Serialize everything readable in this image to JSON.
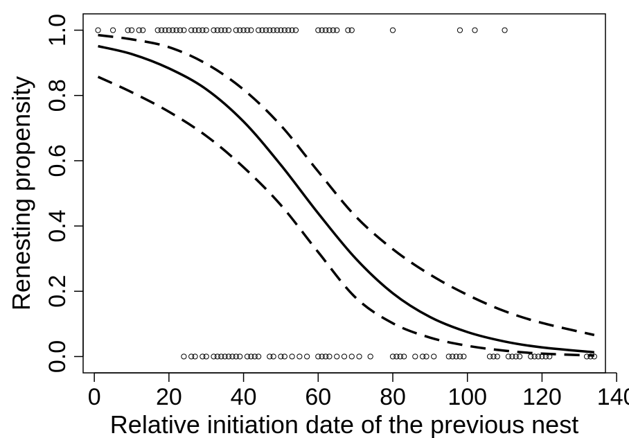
{
  "chart_data": {
    "type": "scatter",
    "title": "",
    "xlabel": "Relative initiation date of the previous nest",
    "ylabel": "Renesting propensity",
    "xlim": [
      -3,
      137
    ],
    "ylim": [
      -0.05,
      1.05
    ],
    "xticks": [
      0,
      20,
      40,
      60,
      80,
      100,
      120,
      140
    ],
    "yticks": [
      0.0,
      0.2,
      0.4,
      0.6,
      0.8,
      1.0
    ],
    "xtick_labels": [
      "0",
      "20",
      "40",
      "60",
      "80",
      "100",
      "120",
      "140"
    ],
    "ytick_labels": [
      "0.0",
      "0.2",
      "0.4",
      "0.6",
      "0.8",
      "1.0"
    ],
    "grid": false,
    "observations": {
      "renested_x": [
        1,
        5,
        9,
        10,
        12,
        13,
        17,
        18,
        19,
        20,
        21,
        22,
        23,
        24,
        26,
        27,
        28,
        29,
        30,
        32,
        33,
        34,
        35,
        36,
        38,
        39,
        40,
        41,
        42,
        44,
        45,
        46,
        47,
        48,
        49,
        50,
        51,
        52,
        53,
        54,
        60,
        61,
        62,
        63,
        64,
        65,
        68,
        69,
        80,
        98,
        102,
        110
      ],
      "not_renested_x": [
        24,
        26,
        27,
        29,
        30,
        32,
        33,
        34,
        35,
        36,
        37,
        38,
        39,
        41,
        42,
        43,
        44,
        47,
        48,
        50,
        51,
        53,
        55,
        57,
        60,
        61,
        62,
        63,
        65,
        67,
        69,
        71,
        74,
        80,
        81,
        82,
        83,
        86,
        88,
        89,
        91,
        95,
        96,
        97,
        98,
        99,
        106,
        107,
        108,
        111,
        112,
        113,
        114,
        117,
        118,
        119,
        120,
        121,
        122,
        132,
        133,
        134
      ]
    },
    "series": [
      {
        "style": "solid",
        "x": [
          1,
          10,
          20,
          30,
          40,
          50,
          60,
          70,
          80,
          90,
          100,
          110,
          120,
          134
        ],
        "y": [
          0.951,
          0.927,
          0.883,
          0.819,
          0.72,
          0.587,
          0.439,
          0.301,
          0.194,
          0.121,
          0.075,
          0.046,
          0.028,
          0.013
        ]
      },
      {
        "style": "dashed",
        "x": [
          1,
          10,
          20,
          30,
          40,
          50,
          60,
          70,
          80,
          90,
          100,
          110,
          120,
          134
        ],
        "y": [
          0.985,
          0.972,
          0.948,
          0.897,
          0.818,
          0.708,
          0.567,
          0.43,
          0.329,
          0.251,
          0.189,
          0.139,
          0.103,
          0.066
        ]
      },
      {
        "style": "dashed",
        "x": [
          1,
          10,
          20,
          30,
          40,
          50,
          60,
          70,
          80,
          90,
          100,
          110,
          120,
          134
        ],
        "y": [
          0.857,
          0.81,
          0.75,
          0.676,
          0.58,
          0.464,
          0.32,
          0.181,
          0.102,
          0.058,
          0.033,
          0.018,
          0.009,
          0.003
        ]
      }
    ]
  }
}
